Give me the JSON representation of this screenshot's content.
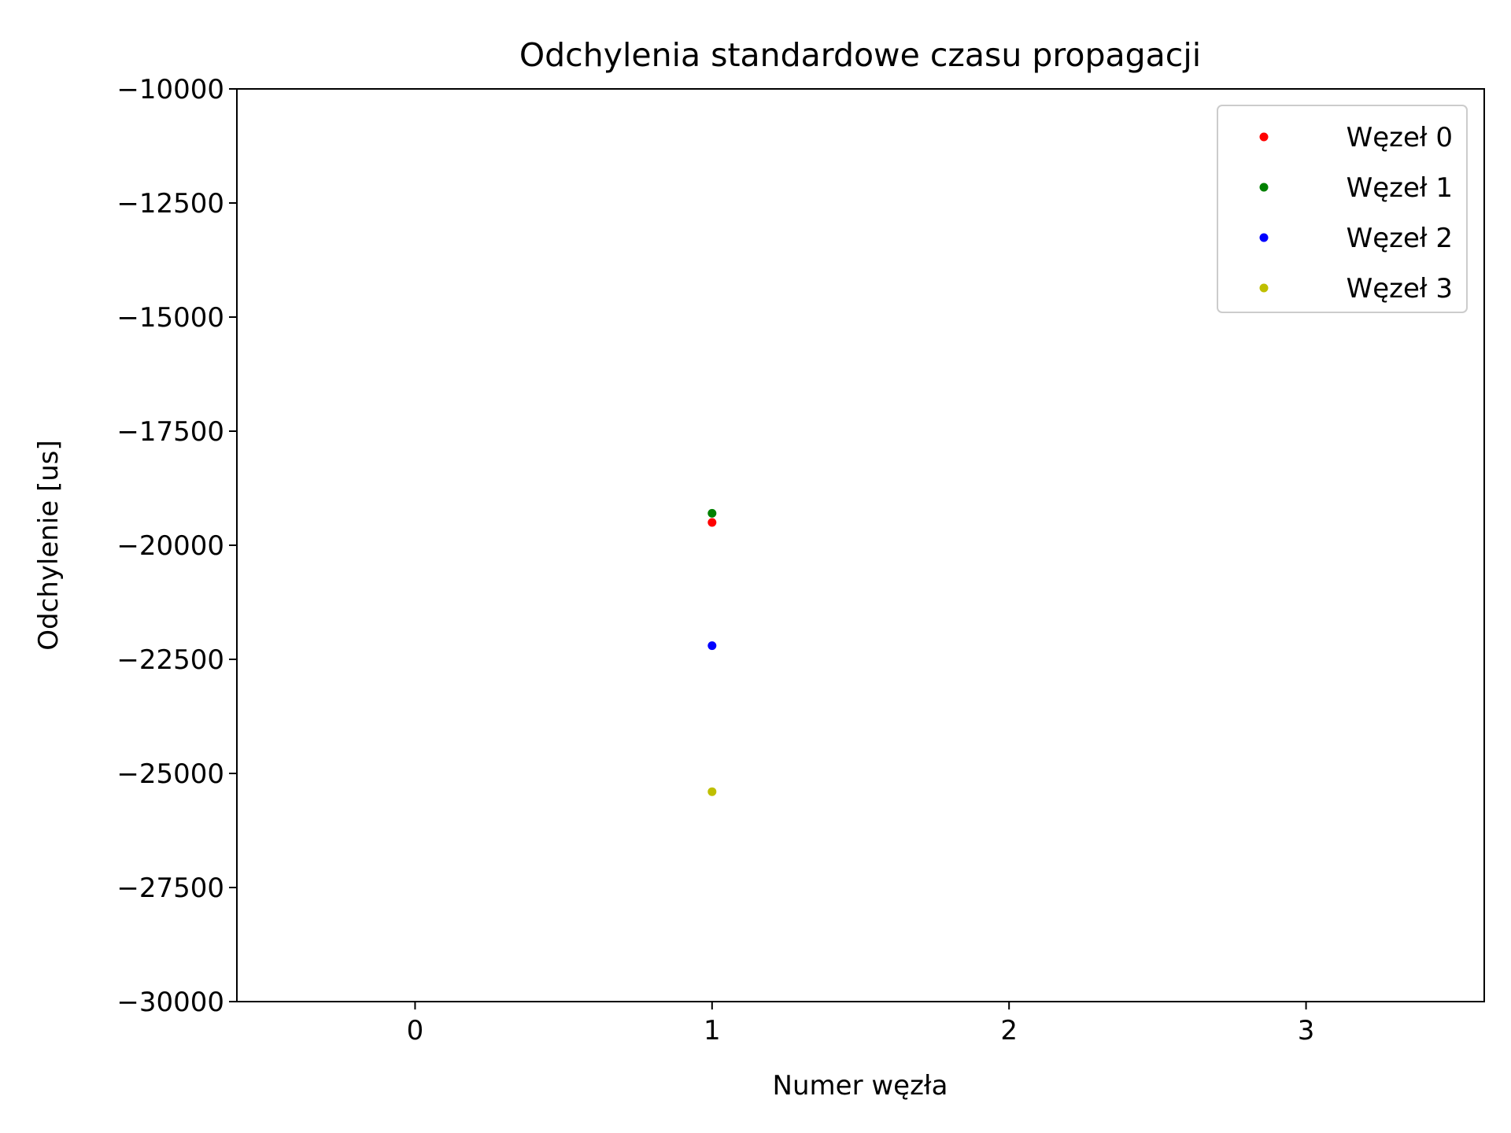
{
  "chart_data": {
    "type": "scatter",
    "title": "Odchylenia standardowe czasu propagacji",
    "xlabel": "Numer węzła",
    "ylabel": "Odchylenie [us]",
    "xlim": [
      -0.6,
      3.6
    ],
    "ylim": [
      -30000,
      -10000
    ],
    "xticks": [
      0,
      1,
      2,
      3
    ],
    "xtick_labels": [
      "0",
      "1",
      "2",
      "3"
    ],
    "yticks": [
      -10000,
      -12500,
      -15000,
      -17500,
      -20000,
      -22500,
      -25000,
      -27500,
      -30000
    ],
    "ytick_labels": [
      "−10000",
      "−12500",
      "−15000",
      "−17500",
      "−20000",
      "−22500",
      "−25000",
      "−27500",
      "−30000"
    ],
    "grid": false,
    "legend_position": "top-right",
    "series": [
      {
        "name": "Węzeł 0",
        "color": "#ff0000",
        "points": [
          {
            "x": 1,
            "y": -19500
          }
        ]
      },
      {
        "name": "Węzeł 1",
        "color": "#008000",
        "points": [
          {
            "x": 1,
            "y": -19300
          }
        ]
      },
      {
        "name": "Węzeł 2",
        "color": "#0000ff",
        "points": [
          {
            "x": 1,
            "y": -22200
          }
        ]
      },
      {
        "name": "Węzeł 3",
        "color": "#bfbf00",
        "points": [
          {
            "x": 1,
            "y": -25400
          }
        ]
      }
    ]
  }
}
